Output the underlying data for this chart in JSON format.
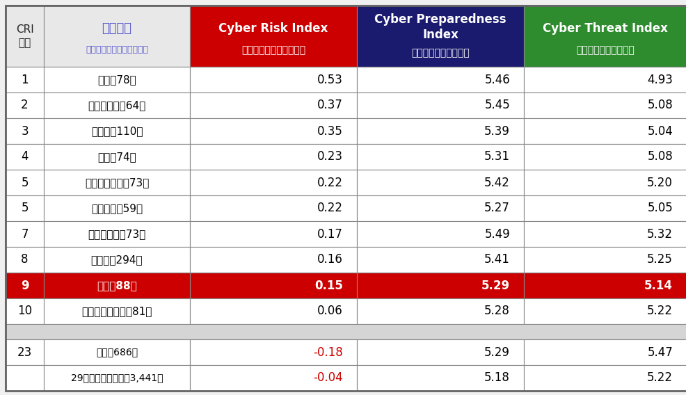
{
  "header_bg_col3": "#cc0000",
  "header_bg_col4": "#1a1a6e",
  "header_bg_col5": "#2e8b2e",
  "rows": [
    {
      "rank": "1",
      "country": "台湾（78）",
      "cri": "0.53",
      "cpi": "5.46",
      "cti": "4.93",
      "highlight": false
    },
    {
      "rank": "2",
      "country": "マレーシア（64）",
      "cri": "0.37",
      "cpi": "5.45",
      "cti": "5.08",
      "highlight": false
    },
    {
      "rank": "3",
      "country": "インド（110）",
      "cri": "0.35",
      "cpi": "5.39",
      "cti": "5.04",
      "highlight": false
    },
    {
      "rank": "4",
      "country": "タイ（74）",
      "cri": "0.23",
      "cpi": "5.31",
      "cti": "5.08",
      "highlight": false
    },
    {
      "rank": "5",
      "country": "インドネシア（73）",
      "cri": "0.22",
      "cpi": "5.42",
      "cti": "5.20",
      "highlight": false
    },
    {
      "rank": "5",
      "country": "ベトナム（59）",
      "cri": "0.22",
      "cpi": "5.27",
      "cti": "5.05",
      "highlight": false
    },
    {
      "rank": "7",
      "country": "フィリピン（73）",
      "cri": "0.17",
      "cpi": "5.49",
      "cti": "5.32",
      "highlight": false
    },
    {
      "rank": "8",
      "country": "カナダ（294）",
      "cri": "0.16",
      "cpi": "5.41",
      "cti": "5.25",
      "highlight": false
    },
    {
      "rank": "9",
      "country": "日本（88）",
      "cri": "0.15",
      "cpi": "5.29",
      "cti": "5.14",
      "highlight": true
    },
    {
      "rank": "10",
      "country": "オーストラリア（81）",
      "cri": "0.06",
      "cpi": "5.28",
      "cti": "5.22",
      "highlight": false
    }
  ],
  "extra_rows": [
    {
      "rank": "23",
      "country": "米国（686）",
      "cri": "-0.18",
      "cpi": "5.29",
      "cti": "5.47",
      "cri_red": true
    },
    {
      "rank": "",
      "country": "29の国・地域合計（3,441）",
      "cri": "-0.04",
      "cpi": "5.18",
      "cti": "5.22",
      "cri_red": true
    }
  ],
  "highlight_bg": "#cc0000",
  "cri_negative_color": "#cc0000",
  "header_col1_text": "CRI\n順位",
  "header_col2_line1": "国・地域",
  "header_col2_line2": "（括弧はサンプル組織数）",
  "header_col3_line1": "Cyber Risk Index",
  "header_col3_line2": "（サイバーリスク指数）",
  "header_col4_line1": "Cyber Preparedness\nIndex",
  "header_col4_line2": "（サイバー予防指数）",
  "header_col5_line1": "Cyber Threat Index",
  "header_col5_line2": "（サイバー脅威指数）"
}
